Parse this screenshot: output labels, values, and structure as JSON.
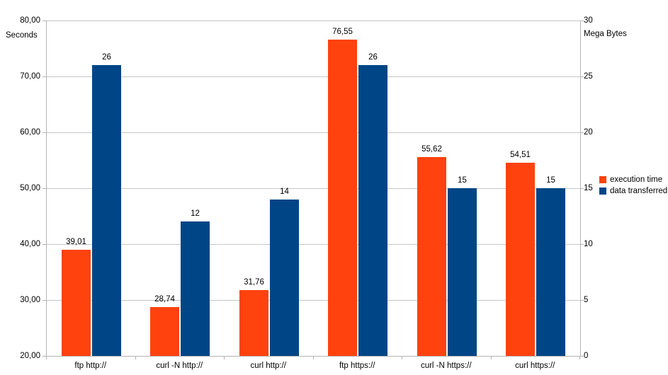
{
  "chart_data": {
    "type": "bar",
    "title": "",
    "categories": [
      "ftp http://",
      "curl -N http://",
      "curl http://",
      "ftp https://",
      "curl -N https://",
      "curl https://"
    ],
    "series": [
      {
        "name": "execution time",
        "axis": "left",
        "color": "#ff420e",
        "values": [
          39.01,
          28.74,
          31.76,
          76.55,
          55.62,
          54.51
        ],
        "labels": [
          "39,01",
          "28,74",
          "31,76",
          "76,55",
          "55,62",
          "54,51"
        ]
      },
      {
        "name": "data transferred",
        "axis": "right",
        "color": "#004586",
        "values": [
          26,
          12,
          14,
          26,
          15,
          15
        ],
        "labels": [
          "26",
          "12",
          "14",
          "26",
          "15",
          "15"
        ]
      }
    ],
    "left_axis": {
      "title": "Seconds",
      "min": 20,
      "max": 80,
      "ticks": [
        "80,00",
        "70,00",
        "60,00",
        "50,00",
        "40,00",
        "30,00",
        "20,00"
      ]
    },
    "right_axis": {
      "title": "Mega Bytes",
      "min": 0,
      "max": 30,
      "ticks": [
        "30",
        "25",
        "20",
        "15",
        "10",
        "5",
        "0"
      ]
    },
    "legend": {
      "position": "right",
      "entries": [
        "execution time",
        "data transferred"
      ]
    },
    "grid": "horizontal",
    "colors": {
      "gridline": "#c6c6c6",
      "axis": "#b3b3b3",
      "text": "#000000",
      "background": "#ffffff"
    }
  }
}
